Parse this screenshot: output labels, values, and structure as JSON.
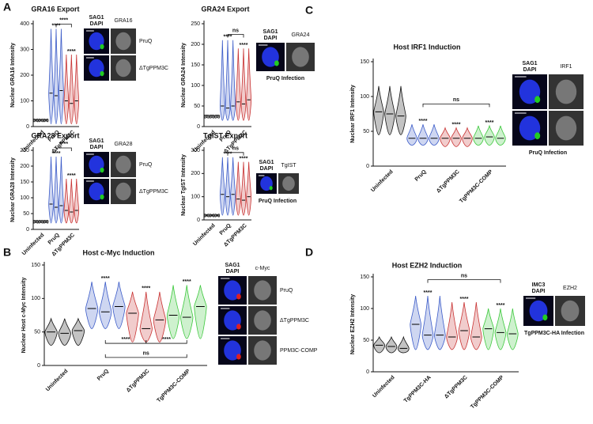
{
  "chart_data": [
    {
      "type": "violin",
      "panel": "A",
      "title": "GRA16 Export",
      "y_label": "Nuclear GRA16 Intensity",
      "categories": [
        "Uninfected",
        "PruQ",
        "ΔTgPPM3C"
      ],
      "colors": [
        "#111111",
        "#3b5bc8",
        "#c83232"
      ],
      "values": [
        [
          25,
          25,
          25
        ],
        [
          130,
          120,
          140
        ],
        [
          100,
          90,
          100
        ]
      ],
      "low": [
        22,
        10,
        10
      ],
      "high": [
        28,
        380,
        280
      ],
      "ylim": [
        0,
        400
      ],
      "yticks": [
        0,
        100,
        200,
        300,
        400
      ],
      "stars": [
        null,
        "****",
        "****"
      ],
      "bracket_labels": [
        "****"
      ],
      "image": {
        "stains": [
          "SAG1",
          "DAPI",
          "GRA16"
        ],
        "stain_colors": [
          "#22cc22",
          "#22aaee",
          "#222222"
        ],
        "rows": [
          "PruQ",
          "ΔTgPPM3C"
        ]
      }
    },
    {
      "type": "violin",
      "title": "GRA24 Export",
      "y_label": "Nuclear GRA24 Intensity",
      "categories": [
        "Uninfected",
        "PruQ",
        "ΔTgPPM3C"
      ],
      "colors": [
        "#111111",
        "#3b5bc8",
        "#c83232"
      ],
      "values": [
        [
          25,
          25,
          25
        ],
        [
          50,
          45,
          50
        ],
        [
          60,
          55,
          65
        ]
      ],
      "low": [
        22,
        15,
        15
      ],
      "high": [
        28,
        210,
        190
      ],
      "ylim": [
        0,
        250
      ],
      "yticks": [
        0,
        50,
        100,
        150,
        200,
        250
      ],
      "stars": [
        null,
        "****",
        "****"
      ],
      "bracket_labels": [
        "ns"
      ],
      "image": {
        "stains": [
          "SAG1",
          "DAPI",
          "GRA24"
        ],
        "stain_colors": [
          "#22cc22",
          "#22aaee",
          "#222222"
        ],
        "caption": "PruQ Infection"
      }
    },
    {
      "type": "violin",
      "title": "GRA28 Export",
      "y_label": "Nuclear GRA28 Intensity",
      "categories": [
        "Uninfected",
        "PruQ",
        "ΔTgPPM3C"
      ],
      "colors": [
        "#111111",
        "#3b5bc8",
        "#c83232"
      ],
      "values": [
        [
          25,
          25,
          25
        ],
        [
          80,
          70,
          75
        ],
        [
          60,
          55,
          60
        ]
      ],
      "low": [
        22,
        20,
        20
      ],
      "high": [
        28,
        230,
        160
      ],
      "ylim": [
        0,
        250
      ],
      "yticks": [
        0,
        50,
        100,
        150,
        200,
        250
      ],
      "stars": [
        null,
        "****",
        "****"
      ],
      "bracket_labels": [
        "****"
      ],
      "image": {
        "stains": [
          "SAG1",
          "DAPI",
          "GRA28"
        ],
        "stain_colors": [
          "#22cc22",
          "#22aaee",
          "#222222"
        ],
        "rows": [
          "PruQ",
          "ΔTgPPM3C"
        ]
      }
    },
    {
      "type": "violin",
      "title": "TgIST Export",
      "y_label": "Nuclear TgIST Intensity",
      "categories": [
        "Uninfected",
        "PruQ",
        "ΔTgPPM3C"
      ],
      "colors": [
        "#111111",
        "#3b5bc8",
        "#c83232"
      ],
      "values": [
        [
          20,
          20,
          20
        ],
        [
          110,
          100,
          110
        ],
        [
          90,
          85,
          100
        ]
      ],
      "low": [
        17,
        20,
        20
      ],
      "high": [
        23,
        270,
        250
      ],
      "ylim": [
        0,
        300
      ],
      "yticks": [
        0,
        100,
        200,
        300
      ],
      "stars": [
        null,
        "****",
        "****"
      ],
      "bracket_labels": [
        "ns"
      ],
      "image": {
        "stains": [
          "SAG1",
          "DAPI",
          "TgIST"
        ],
        "stain_colors": [
          "#22cc22",
          "#22aaee",
          "#222222"
        ],
        "caption": "PruQ Infection"
      }
    },
    {
      "type": "violin",
      "panel": "B",
      "title": "Host c-Myc Induction",
      "y_label": "Nuclear Host c-Myc Intensity",
      "categories": [
        "Uninfected",
        "PruQ",
        "ΔTgPPM3C",
        "TgPPM3C-COMP"
      ],
      "colors": [
        "#111111",
        "#3b5bc8",
        "#c83232",
        "#3cc83c"
      ],
      "values": [
        [
          50,
          48,
          52
        ],
        [
          85,
          80,
          88
        ],
        [
          78,
          55,
          68
        ],
        [
          75,
          72,
          88
        ]
      ],
      "low": [
        30,
        55,
        35,
        40
      ],
      "high": [
        70,
        125,
        110,
        120
      ],
      "ylim": [
        0,
        150
      ],
      "yticks": [
        0,
        50,
        100,
        150
      ],
      "stars": [
        null,
        "****",
        "****",
        "****"
      ],
      "bracket_labels": [
        "****",
        "****",
        "ns"
      ],
      "image": {
        "stains": [
          "SAG1",
          "DAPI",
          "c-Myc"
        ],
        "stain_colors": [
          "#e02020",
          "#22aaee",
          "#222222"
        ],
        "rows": [
          "PruQ",
          "ΔTgPPM3C",
          "PPM3C-COMP"
        ]
      }
    },
    {
      "type": "violin",
      "panel": "C",
      "title": "Host IRF1 Induction",
      "y_label": "Nuclear IRF1 Intensity",
      "categories": [
        "Uninfected",
        "PruQ",
        "ΔTgPPM3C",
        "TgPPM3C-COMP"
      ],
      "colors": [
        "#111111",
        "#3b5bc8",
        "#c83232",
        "#3cc83c"
      ],
      "values": [
        [
          78,
          75,
          72
        ],
        [
          40,
          40,
          40
        ],
        [
          40,
          40,
          40
        ],
        [
          40,
          42,
          40
        ]
      ],
      "low": [
        45,
        30,
        28,
        30
      ],
      "high": [
        115,
        60,
        55,
        58
      ],
      "ylim": [
        0,
        150
      ],
      "yticks": [
        0,
        50,
        100,
        150
      ],
      "stars": [
        null,
        "****",
        "****",
        "****"
      ],
      "bracket_labels": [
        "ns"
      ],
      "image": {
        "stains": [
          "SAG1",
          "DAPI",
          "IRF1"
        ],
        "stain_colors": [
          "#22cc22",
          "#22aaee",
          "#222222"
        ],
        "caption": "PruQ Infection"
      }
    },
    {
      "type": "violin",
      "panel": "D",
      "title": "Host EZH2 Induction",
      "y_label": "Nuclear EZH2 Intensity",
      "categories": [
        "Uninfected",
        "TgPPM3C-HA",
        "ΔTgPPM3C",
        "TgPPM3C-COMP"
      ],
      "colors": [
        "#111111",
        "#3b5bc8",
        "#c83232",
        "#3cc83c"
      ],
      "values": [
        [
          42,
          40,
          37
        ],
        [
          75,
          58,
          58
        ],
        [
          55,
          65,
          55
        ],
        [
          68,
          62,
          60
        ]
      ],
      "low": [
        30,
        35,
        35,
        35
      ],
      "high": [
        55,
        120,
        110,
        100
      ],
      "ylim": [
        0,
        150
      ],
      "yticks": [
        0,
        50,
        100,
        150
      ],
      "stars": [
        null,
        "****",
        "****",
        "****"
      ],
      "bracket_labels": [
        "ns"
      ],
      "image": {
        "stains": [
          "IMC3",
          "DAPI",
          "EZH2"
        ],
        "stain_colors": [
          "#22cc22",
          "#22aaee",
          "#222222"
        ],
        "caption": "TgPPM3C-HA Infection"
      }
    }
  ]
}
